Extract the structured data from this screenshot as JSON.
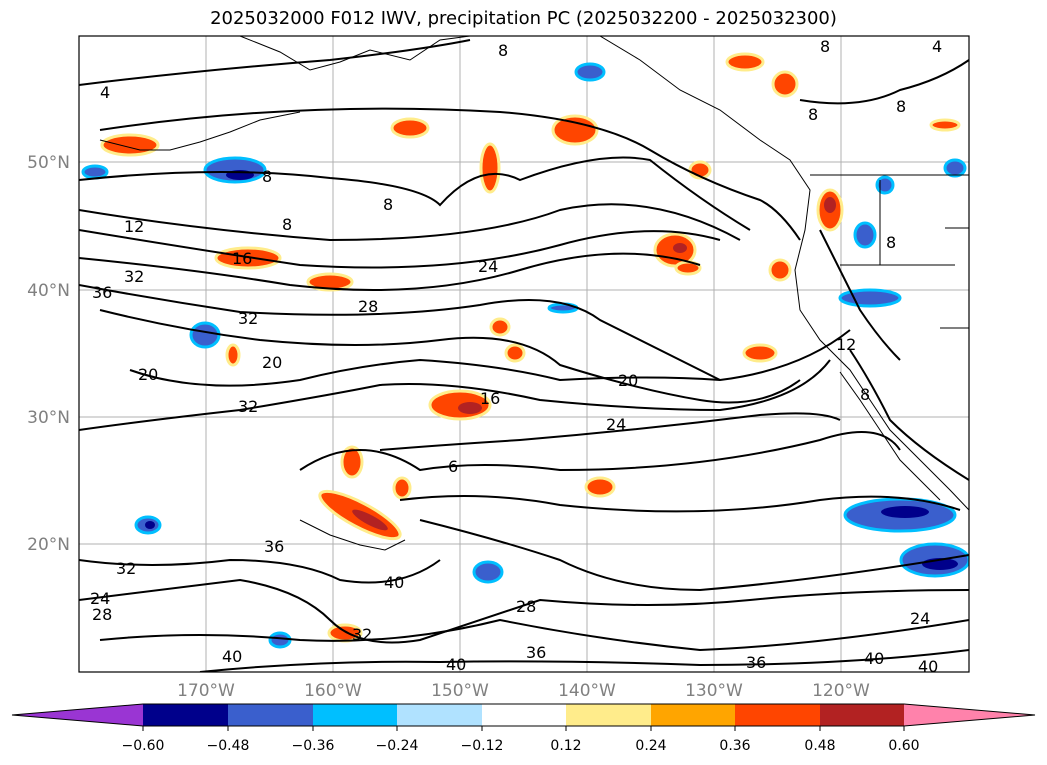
{
  "title": "2025032000 F012 IWV, precipitation PC (2025032200 - 2025032300)",
  "map": {
    "lat_labels": [
      "50°N",
      "40°N",
      "30°N",
      "20°N"
    ],
    "lon_labels": [
      "170°W",
      "160°W",
      "150°W",
      "140°W",
      "130°W",
      "120°W"
    ],
    "gridlines": true,
    "iwv_contour_labels": [
      "4",
      "8",
      "8",
      "8",
      "8",
      "8",
      "8",
      "8",
      "8",
      "12",
      "12",
      "16",
      "16",
      "20",
      "20",
      "20",
      "24",
      "24",
      "24",
      "24",
      "28",
      "28",
      "28",
      "32",
      "32",
      "32",
      "32",
      "32",
      "36",
      "36",
      "36",
      "36",
      "40",
      "40",
      "40",
      "40",
      "40",
      "6",
      "8",
      "4"
    ]
  },
  "colorbar": {
    "ticks": [
      "−0.60",
      "−0.48",
      "−0.36",
      "−0.24",
      "−0.12",
      "0.12",
      "0.24",
      "0.36",
      "0.48",
      "0.60"
    ],
    "colors": [
      "#9a35d3",
      "#00008b",
      "#3a5fcd",
      "#00bfff",
      "#b0e2ff",
      "#ffffff",
      "#ffec8b",
      "#ffa500",
      "#ff4500",
      "#b22222",
      "#ff82ab"
    ],
    "extend": "both"
  },
  "colors": {
    "negative_anomaly": "#3a5fcd",
    "positive_anomaly": "#ff4500",
    "grid": "#b0b0b0",
    "label_gray": "#808080"
  }
}
